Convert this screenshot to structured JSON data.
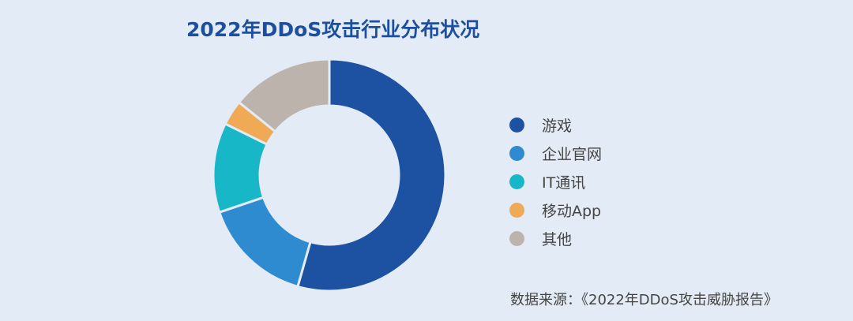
{
  "chart_data": {
    "type": "pie",
    "donut": true,
    "title": "2022年DDoS攻击行业分布状况",
    "start_angle": "top, clockwise",
    "legend_placement": "right",
    "slices": [
      {
        "label": "游戏",
        "value": 54.4,
        "color": "#1d52a3"
      },
      {
        "label": "企业官网",
        "value": 15.4,
        "color": "#2e8bd0"
      },
      {
        "label": "IT通讯",
        "value": 12.5,
        "color": "#17b7c8"
      },
      {
        "label": "移动App",
        "value": 3.5,
        "color": "#f0a955"
      },
      {
        "label": "其他",
        "value": 14.2,
        "color": "#bdb3ad"
      }
    ]
  },
  "source": "数据来源：《2022年DDoS攻击威胁报告》"
}
